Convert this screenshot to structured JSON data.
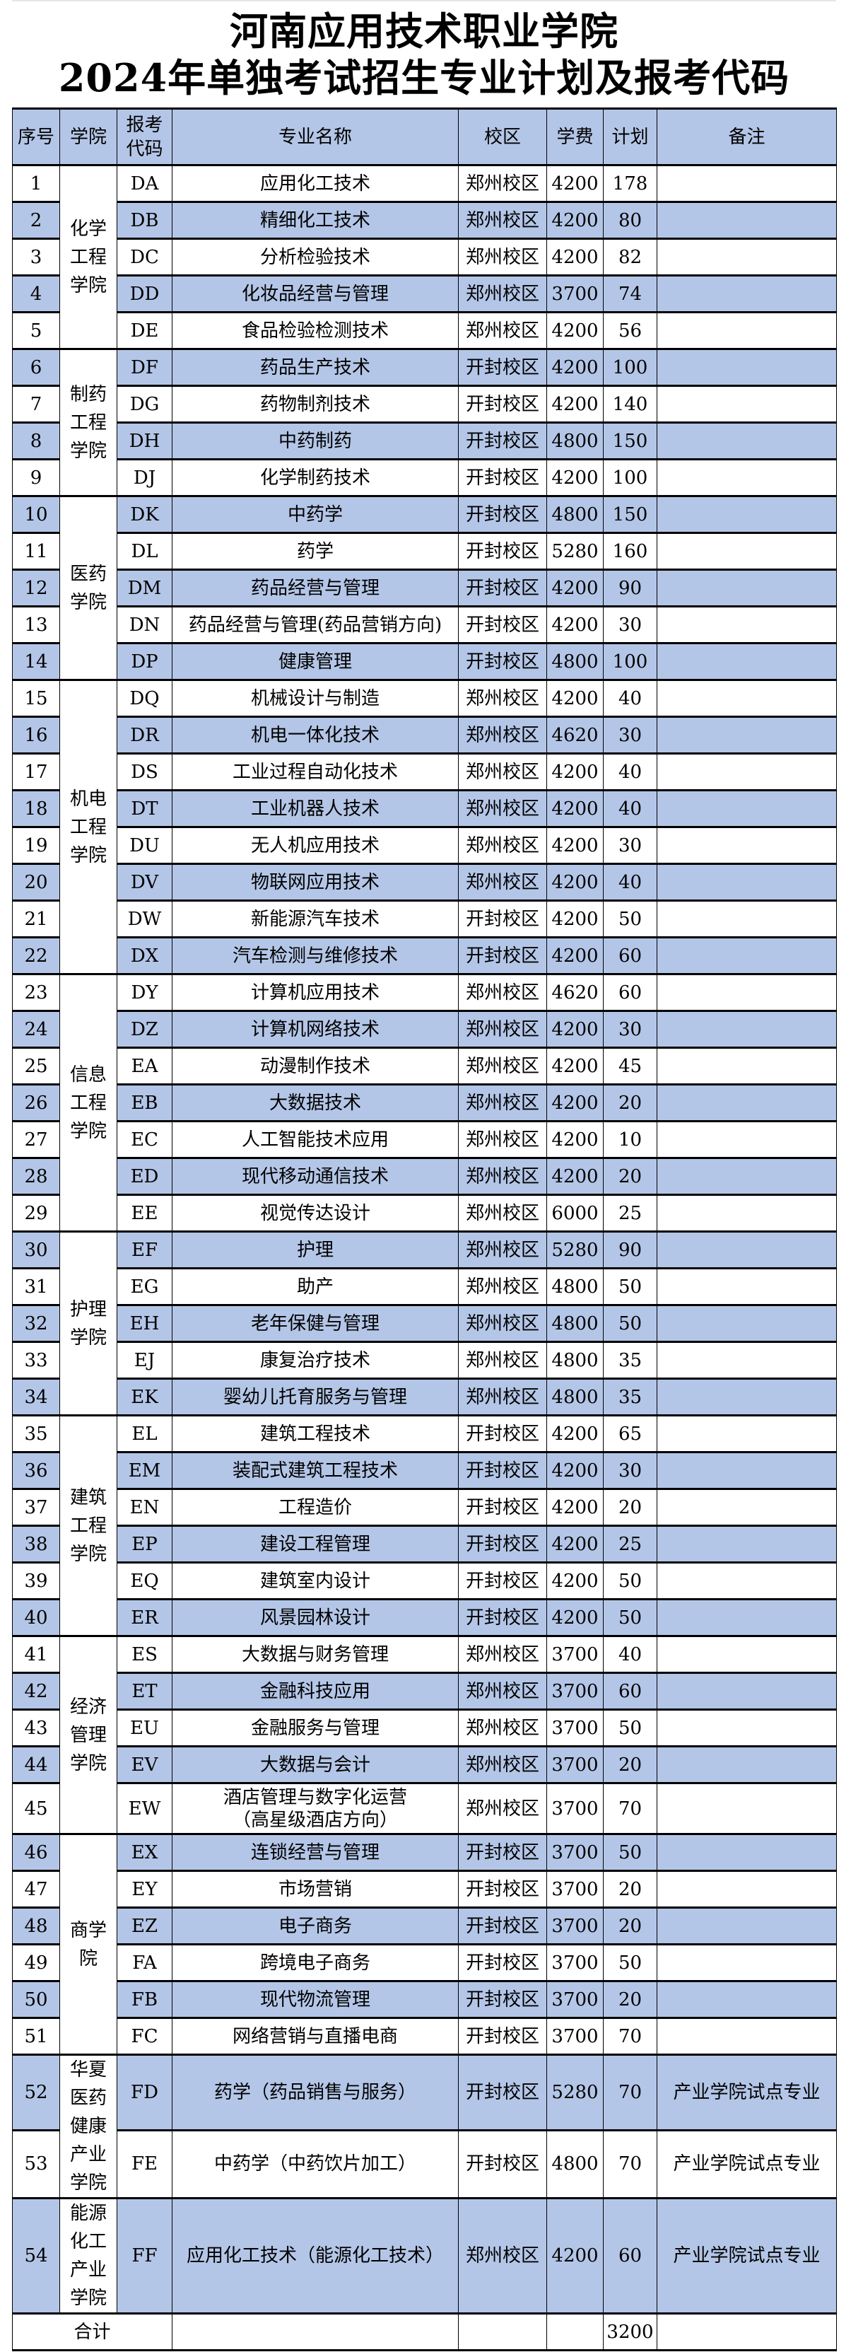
{
  "title": {
    "line1": "河南应用技术职业学院",
    "line2": "2024年单独考试招生专业计划及报考代码"
  },
  "headers": {
    "no": "序号",
    "college": "学院",
    "code": "报考代码",
    "major": "专业名称",
    "campus": "校区",
    "fee": "学费",
    "plan": "计划",
    "note": "备注"
  },
  "colors": {
    "row_highlight": "#b4c6e7",
    "border": "#000000"
  },
  "colleges": [
    {
      "name": "化学工程学院",
      "rows": [
        [
          "1",
          "DA",
          "应用化工技术",
          "郑州校区",
          "4200",
          "178",
          ""
        ],
        [
          "2",
          "DB",
          "精细化工技术",
          "郑州校区",
          "4200",
          "80",
          ""
        ],
        [
          "3",
          "DC",
          "分析检验技术",
          "郑州校区",
          "4200",
          "82",
          ""
        ],
        [
          "4",
          "DD",
          "化妆品经营与管理",
          "郑州校区",
          "3700",
          "74",
          ""
        ],
        [
          "5",
          "DE",
          "食品检验检测技术",
          "郑州校区",
          "4200",
          "56",
          ""
        ]
      ]
    },
    {
      "name": "制药工程学院",
      "rows": [
        [
          "6",
          "DF",
          "药品生产技术",
          "开封校区",
          "4200",
          "100",
          ""
        ],
        [
          "7",
          "DG",
          "药物制剂技术",
          "开封校区",
          "4200",
          "140",
          ""
        ],
        [
          "8",
          "DH",
          "中药制药",
          "开封校区",
          "4800",
          "150",
          ""
        ],
        [
          "9",
          "DJ",
          "化学制药技术",
          "开封校区",
          "4200",
          "100",
          ""
        ]
      ]
    },
    {
      "name": "医药学院",
      "rows": [
        [
          "10",
          "DK",
          "中药学",
          "开封校区",
          "4800",
          "150",
          ""
        ],
        [
          "11",
          "DL",
          "药学",
          "开封校区",
          "5280",
          "160",
          ""
        ],
        [
          "12",
          "DM",
          "药品经营与管理",
          "开封校区",
          "4200",
          "90",
          ""
        ],
        [
          "13",
          "DN",
          "药品经营与管理(药品营销方向)",
          "开封校区",
          "4200",
          "30",
          ""
        ],
        [
          "14",
          "DP",
          "健康管理",
          "开封校区",
          "4800",
          "100",
          ""
        ]
      ]
    },
    {
      "name": "机电工程学院",
      "rows": [
        [
          "15",
          "DQ",
          "机械设计与制造",
          "郑州校区",
          "4200",
          "40",
          ""
        ],
        [
          "16",
          "DR",
          "机电一体化技术",
          "郑州校区",
          "4620",
          "30",
          ""
        ],
        [
          "17",
          "DS",
          "工业过程自动化技术",
          "郑州校区",
          "4200",
          "40",
          ""
        ],
        [
          "18",
          "DT",
          "工业机器人技术",
          "郑州校区",
          "4200",
          "40",
          ""
        ],
        [
          "19",
          "DU",
          "无人机应用技术",
          "郑州校区",
          "4200",
          "30",
          ""
        ],
        [
          "20",
          "DV",
          "物联网应用技术",
          "郑州校区",
          "4200",
          "40",
          ""
        ],
        [
          "21",
          "DW",
          "新能源汽车技术",
          "开封校区",
          "4200",
          "50",
          ""
        ],
        [
          "22",
          "DX",
          "汽车检测与维修技术",
          "开封校区",
          "4200",
          "60",
          ""
        ]
      ]
    },
    {
      "name": "信息工程学院",
      "rows": [
        [
          "23",
          "DY",
          "计算机应用技术",
          "郑州校区",
          "4620",
          "60",
          ""
        ],
        [
          "24",
          "DZ",
          "计算机网络技术",
          "郑州校区",
          "4200",
          "30",
          ""
        ],
        [
          "25",
          "EA",
          "动漫制作技术",
          "郑州校区",
          "4200",
          "45",
          ""
        ],
        [
          "26",
          "EB",
          "大数据技术",
          "郑州校区",
          "4200",
          "20",
          ""
        ],
        [
          "27",
          "EC",
          "人工智能技术应用",
          "郑州校区",
          "4200",
          "10",
          ""
        ],
        [
          "28",
          "ED",
          "现代移动通信技术",
          "郑州校区",
          "4200",
          "20",
          ""
        ],
        [
          "29",
          "EE",
          "视觉传达设计",
          "郑州校区",
          "6000",
          "25",
          ""
        ]
      ]
    },
    {
      "name": "护理学院",
      "rows": [
        [
          "30",
          "EF",
          "护理",
          "郑州校区",
          "5280",
          "90",
          ""
        ],
        [
          "31",
          "EG",
          "助产",
          "郑州校区",
          "4800",
          "50",
          ""
        ],
        [
          "32",
          "EH",
          "老年保健与管理",
          "郑州校区",
          "4800",
          "50",
          ""
        ],
        [
          "33",
          "EJ",
          "康复治疗技术",
          "郑州校区",
          "4800",
          "35",
          ""
        ],
        [
          "34",
          "EK",
          "婴幼儿托育服务与管理",
          "郑州校区",
          "4800",
          "35",
          ""
        ]
      ]
    },
    {
      "name": "建筑工程学院",
      "rows": [
        [
          "35",
          "EL",
          "建筑工程技术",
          "开封校区",
          "4200",
          "65",
          ""
        ],
        [
          "36",
          "EM",
          "装配式建筑工程技术",
          "开封校区",
          "4200",
          "30",
          ""
        ],
        [
          "37",
          "EN",
          "工程造价",
          "开封校区",
          "4200",
          "20",
          ""
        ],
        [
          "38",
          "EP",
          "建设工程管理",
          "开封校区",
          "4200",
          "25",
          ""
        ],
        [
          "39",
          "EQ",
          "建筑室内设计",
          "开封校区",
          "4200",
          "50",
          ""
        ],
        [
          "40",
          "ER",
          "风景园林设计",
          "开封校区",
          "4200",
          "50",
          ""
        ]
      ]
    },
    {
      "name": "经济管理学院",
      "rows": [
        [
          "41",
          "ES",
          "大数据与财务管理",
          "郑州校区",
          "3700",
          "40",
          ""
        ],
        [
          "42",
          "ET",
          "金融科技应用",
          "郑州校区",
          "3700",
          "60",
          ""
        ],
        [
          "43",
          "EU",
          "金融服务与管理",
          "郑州校区",
          "3700",
          "50",
          ""
        ],
        [
          "44",
          "EV",
          "大数据与会计",
          "郑州校区",
          "3700",
          "20",
          ""
        ],
        [
          "45",
          "EW",
          "酒店管理与数字化运营\n（高星级酒店方向）",
          "郑州校区",
          "3700",
          "70",
          ""
        ]
      ]
    },
    {
      "name": "商学院",
      "rows": [
        [
          "46",
          "EX",
          "连锁经营与管理",
          "开封校区",
          "3700",
          "50",
          ""
        ],
        [
          "47",
          "EY",
          "市场营销",
          "开封校区",
          "3700",
          "20",
          ""
        ],
        [
          "48",
          "EZ",
          "电子商务",
          "开封校区",
          "3700",
          "20",
          ""
        ],
        [
          "49",
          "FA",
          "跨境电子商务",
          "开封校区",
          "3700",
          "50",
          ""
        ],
        [
          "50",
          "FB",
          "现代物流管理",
          "开封校区",
          "3700",
          "20",
          ""
        ],
        [
          "51",
          "FC",
          "网络营销与直播电商",
          "开封校区",
          "3700",
          "70",
          ""
        ]
      ]
    },
    {
      "name": "华夏医药健康产业学院",
      "rows": [
        [
          "52",
          "FD",
          "药学（药品销售与服务）",
          "开封校区",
          "5280",
          "70",
          "产业学院试点专业"
        ],
        [
          "53",
          "FE",
          "中药学（中药饮片加工）",
          "开封校区",
          "4800",
          "70",
          "产业学院试点专业"
        ]
      ]
    },
    {
      "name": "能源化工产业学院",
      "rows": [
        [
          "54",
          "FF",
          "应用化工技术（能源化工技术）",
          "郑州校区",
          "4200",
          "60",
          "产业学院试点专业"
        ]
      ]
    }
  ],
  "total": {
    "label": "合计",
    "plan": "3200"
  }
}
